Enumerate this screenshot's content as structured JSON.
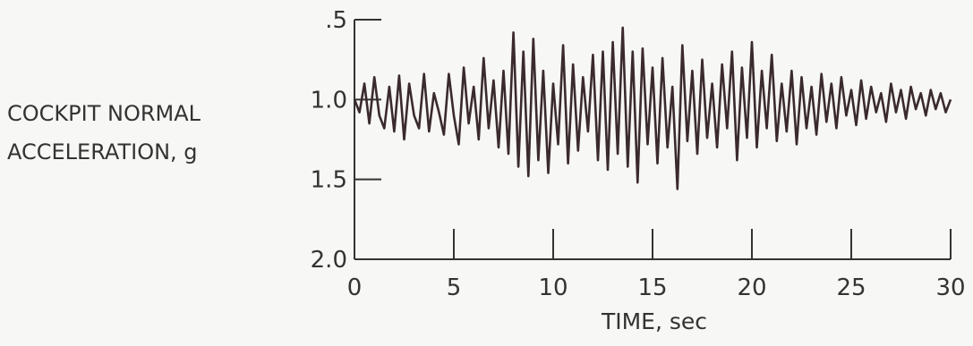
{
  "chart_data": {
    "type": "line",
    "ylabel": [
      "COCKPIT NORMAL",
      "ACCELERATION, g"
    ],
    "xlabel": "TIME, sec",
    "xlim": [
      0,
      30
    ],
    "ylim": [
      0.5,
      2.0
    ],
    "y_inverted": true,
    "xticks": [
      0,
      5,
      10,
      15,
      20,
      25,
      30
    ],
    "xtick_labels": [
      "0",
      "5",
      "10",
      "15",
      "20",
      "25",
      "30"
    ],
    "yticks": [
      0.5,
      1.0,
      1.5,
      2.0
    ],
    "ytick_labels": [
      ".5",
      "1.0",
      "1.5",
      "2.0"
    ],
    "grid": false,
    "series": [
      {
        "x": [
          0,
          0.25,
          0.5,
          0.75,
          1.0,
          1.25,
          1.5,
          1.75,
          2.0,
          2.25,
          2.5,
          2.75,
          3.0,
          3.25,
          3.5,
          3.75,
          4.0,
          4.25,
          4.5,
          4.75,
          5.0,
          5.25,
          5.5,
          5.75,
          6.0,
          6.25,
          6.5,
          6.75,
          7.0,
          7.25,
          7.5,
          7.75,
          8.0,
          8.25,
          8.5,
          8.75,
          9.0,
          9.25,
          9.5,
          9.75,
          10.0,
          10.25,
          10.5,
          10.75,
          11.0,
          11.25,
          11.5,
          11.75,
          12.0,
          12.25,
          12.5,
          12.75,
          13.0,
          13.25,
          13.5,
          13.75,
          14.0,
          14.25,
          14.5,
          14.75,
          15.0,
          15.25,
          15.5,
          15.75,
          16.0,
          16.25,
          16.5,
          16.75,
          17.0,
          17.25,
          17.5,
          17.75,
          18.0,
          18.25,
          18.5,
          18.75,
          19.0,
          19.25,
          19.5,
          19.75,
          20.0,
          20.25,
          20.5,
          20.75,
          21.0,
          21.25,
          21.5,
          21.75,
          22.0,
          22.25,
          22.5,
          22.75,
          23.0,
          23.25,
          23.5,
          23.75,
          24.0,
          24.25,
          24.5,
          24.75,
          25.0,
          25.25,
          25.5,
          25.75,
          26.0,
          26.25,
          26.5,
          26.75,
          27.0,
          27.25,
          27.5,
          27.75,
          28.0,
          28.25,
          28.5,
          28.75,
          29.0,
          29.25,
          29.5,
          29.75,
          30.0
        ],
        "y": [
          1.0,
          1.08,
          0.9,
          1.15,
          0.86,
          1.1,
          1.18,
          0.92,
          1.2,
          0.85,
          1.25,
          0.9,
          1.1,
          1.18,
          0.84,
          1.2,
          0.96,
          1.08,
          1.22,
          0.84,
          1.1,
          1.28,
          0.8,
          1.15,
          0.92,
          1.25,
          0.74,
          1.18,
          0.88,
          1.3,
          0.82,
          1.34,
          0.58,
          1.42,
          0.7,
          1.48,
          0.62,
          1.38,
          0.82,
          1.46,
          0.9,
          1.28,
          0.66,
          1.4,
          0.78,
          1.32,
          0.86,
          1.2,
          0.72,
          1.38,
          0.7,
          1.44,
          0.64,
          1.34,
          0.55,
          1.42,
          0.7,
          1.52,
          0.68,
          1.28,
          0.8,
          1.4,
          0.74,
          1.3,
          0.92,
          1.56,
          0.66,
          1.26,
          0.82,
          1.34,
          0.75,
          1.24,
          0.9,
          1.3,
          0.78,
          1.18,
          0.7,
          1.38,
          0.8,
          1.24,
          0.64,
          1.3,
          0.82,
          1.18,
          0.72,
          1.26,
          0.9,
          1.2,
          0.82,
          1.28,
          0.86,
          1.18,
          0.92,
          1.22,
          0.84,
          1.14,
          0.9,
          1.18,
          0.86,
          1.1,
          0.94,
          1.16,
          0.88,
          1.12,
          0.92,
          1.08,
          0.96,
          1.14,
          0.9,
          1.08,
          0.94,
          1.12,
          0.92,
          1.06,
          0.96,
          1.1,
          0.94,
          1.06,
          0.96,
          1.08,
          1.0
        ]
      }
    ]
  }
}
